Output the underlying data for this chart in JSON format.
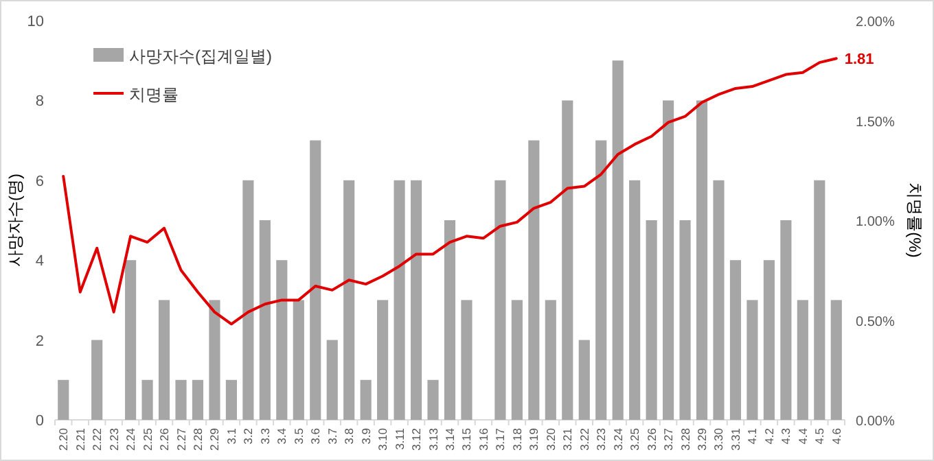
{
  "chart_data": {
    "type": "bar",
    "ylabel": "사망자수(명)",
    "y2label": "치명률(%)",
    "legend": "top left",
    "categories": [
      "2.20",
      "2.21",
      "2.22",
      "2.23",
      "2.24",
      "2.25",
      "2.26",
      "2.27",
      "2.28",
      "2.29",
      "3.1",
      "3.2",
      "3.3",
      "3.4",
      "3.5",
      "3.6",
      "3.7",
      "3.8",
      "3.9",
      "3.10",
      "3.11",
      "3.12",
      "3.13",
      "3.14",
      "3.15",
      "3.16",
      "3.17",
      "3.18",
      "3.19",
      "3.20",
      "3.21",
      "3.22",
      "3.23",
      "3.24",
      "3.25",
      "3.26",
      "3.27",
      "3.28",
      "3.29",
      "3.30",
      "3.31",
      "4.1",
      "4.2",
      "4.3",
      "4.4",
      "4.5",
      "4.6"
    ],
    "series": [
      {
        "name": "사망자수(집계일별)",
        "color": "#a6a6a6",
        "values": [
          1,
          0,
          2,
          0,
          4,
          1,
          3,
          1,
          1,
          3,
          1,
          6,
          5,
          4,
          3,
          7,
          2,
          6,
          1,
          3,
          6,
          6,
          1,
          5,
          3,
          0,
          6,
          3,
          7,
          3,
          8,
          2,
          7,
          9,
          6,
          5,
          8,
          5,
          8,
          6,
          4,
          3,
          4,
          5,
          3,
          6,
          3
        ]
      },
      {
        "name": "치명률",
        "type": "line",
        "axis": "y2",
        "color": "#e00000",
        "values": [
          1.22,
          0.64,
          0.86,
          0.54,
          0.92,
          0.89,
          0.96,
          0.75,
          0.64,
          0.54,
          0.48,
          0.54,
          0.58,
          0.6,
          0.6,
          0.67,
          0.65,
          0.7,
          0.68,
          0.72,
          0.77,
          0.83,
          0.83,
          0.89,
          0.92,
          0.91,
          0.97,
          0.99,
          1.06,
          1.09,
          1.16,
          1.17,
          1.23,
          1.33,
          1.38,
          1.42,
          1.49,
          1.52,
          1.59,
          1.63,
          1.66,
          1.67,
          1.7,
          1.73,
          1.74,
          1.79,
          1.81
        ],
        "value_labels": [
          null,
          null,
          null,
          null,
          null,
          null,
          null,
          null,
          null,
          null,
          null,
          null,
          null,
          null,
          null,
          null,
          null,
          null,
          null,
          null,
          null,
          null,
          null,
          null,
          null,
          null,
          null,
          null,
          null,
          null,
          null,
          null,
          null,
          null,
          null,
          null,
          null,
          null,
          null,
          null,
          null,
          null,
          null,
          null,
          null,
          null,
          "1.81"
        ]
      }
    ],
    "ylim": [
      0,
      10
    ],
    "yticks": [
      0,
      2,
      4,
      6,
      8,
      10
    ],
    "y2lim": [
      0,
      2
    ],
    "y2ticks": [
      {
        "value": 0,
        "label": "0.00%"
      },
      {
        "value": 0.5,
        "label": "0.50%"
      },
      {
        "value": 1,
        "label": "1.00%"
      },
      {
        "value": 1.5,
        "label": "1.50%"
      },
      {
        "value": 2,
        "label": "2.00%"
      }
    ]
  }
}
